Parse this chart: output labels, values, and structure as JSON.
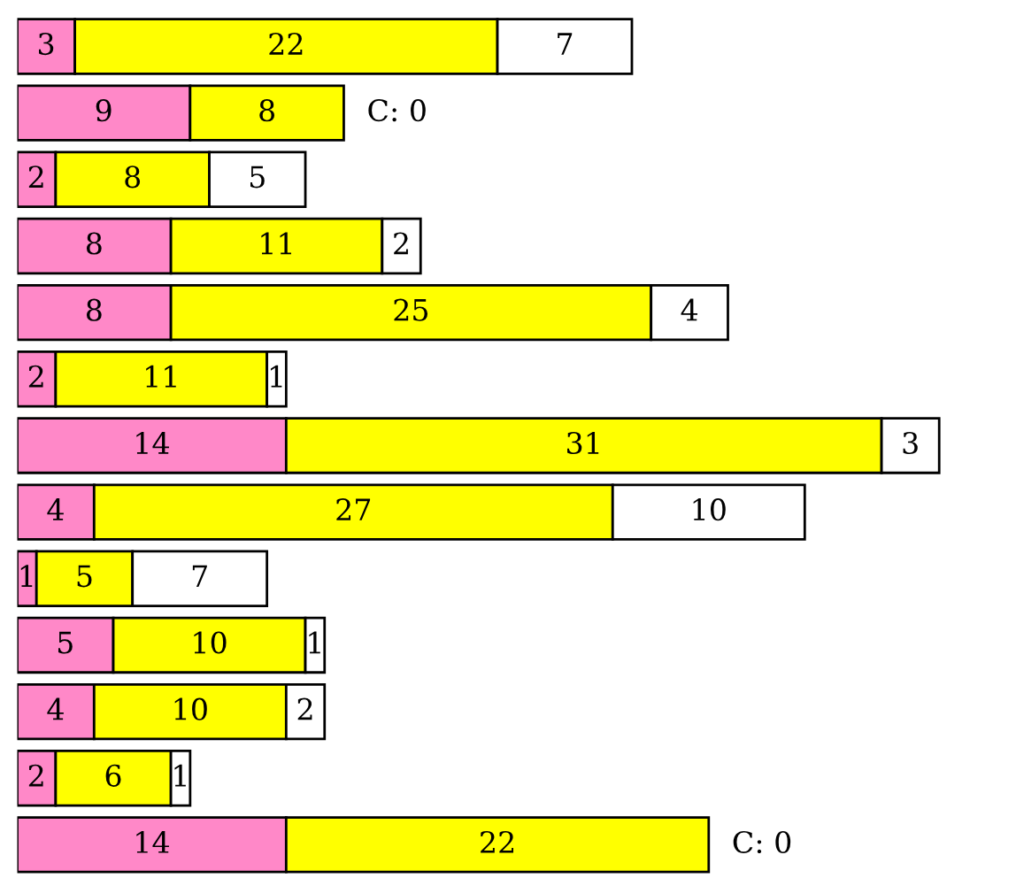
{
  "chart_data": {
    "type": "bar",
    "orientation": "horizontal",
    "stacked": true,
    "categories": [
      null,
      null,
      null,
      null,
      null,
      null,
      null,
      null,
      null,
      null,
      null,
      null,
      null
    ],
    "series": [
      {
        "color": "#ff88c8",
        "values": [
          3,
          9,
          2,
          8,
          8,
          2,
          14,
          4,
          1,
          5,
          4,
          2,
          14
        ],
        "value_labels": [
          "3",
          "9",
          "2",
          "8",
          "8",
          "2",
          "14",
          "4",
          "1",
          "5",
          "4",
          "2",
          "14"
        ]
      },
      {
        "color": "#ffff00",
        "values": [
          22,
          8,
          8,
          11,
          25,
          11,
          31,
          27,
          5,
          10,
          10,
          6,
          22
        ],
        "value_labels": [
          "22",
          "8",
          "8",
          "11",
          "25",
          "11",
          "31",
          "27",
          "5",
          "10",
          "10",
          "6",
          "22"
        ]
      },
      {
        "color": "#ffffff",
        "values": [
          7,
          0,
          5,
          2,
          4,
          1,
          3,
          10,
          7,
          1,
          2,
          1,
          0
        ],
        "value_labels": [
          "7",
          "C: 0",
          "5",
          "2",
          "4",
          "1",
          "3",
          "10",
          "7",
          "1",
          "2",
          "1",
          "C: 0"
        ]
      }
    ]
  }
}
